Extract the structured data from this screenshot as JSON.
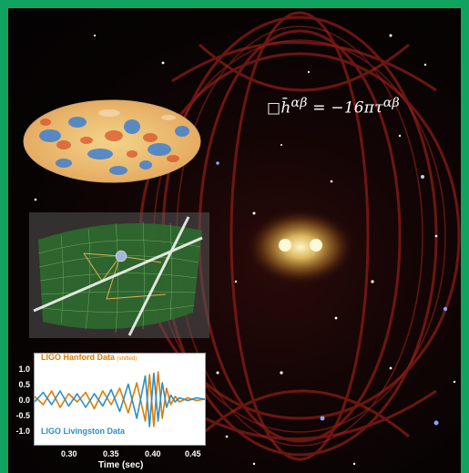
{
  "equation": {
    "box": "□",
    "lhs": "h̄",
    "sup1": "αβ",
    "eq": " = −16πτ",
    "sup2": "αβ"
  },
  "images": {
    "cmb": "cosmic-microwave-background-map",
    "spacetime": "warped-spacetime-grid",
    "background": "red-nebula-with-binary-core"
  },
  "ligo_chart": {
    "legend_top": "LIGO Hanford Data",
    "legend_top_note": "(shifted)",
    "legend_bottom": "LIGO Livingston Data",
    "yticks": [
      "1.0",
      "0.5",
      "0.0",
      "-0.5",
      "-1.0"
    ],
    "xticks": [
      "0.30",
      "0.35",
      "0.40",
      "0.45"
    ],
    "xlabel": "Time (sec)"
  },
  "chart_data": {
    "type": "line",
    "xlabel": "Time (sec)",
    "ylabel": "",
    "xlim": [
      0.26,
      0.46
    ],
    "ylim": [
      -1.2,
      1.2
    ],
    "series": [
      {
        "name": "LIGO Hanford Data",
        "color": "#e07b00",
        "x": [
          0.26,
          0.27,
          0.28,
          0.29,
          0.3,
          0.31,
          0.32,
          0.33,
          0.34,
          0.35,
          0.36,
          0.37,
          0.38,
          0.39,
          0.395,
          0.4,
          0.405,
          0.41,
          0.415,
          0.42,
          0.425,
          0.43,
          0.44,
          0.45,
          0.46
        ],
        "y": [
          0.1,
          -0.2,
          0.3,
          -0.3,
          0.2,
          -0.1,
          0.25,
          -0.35,
          0.3,
          -0.2,
          0.4,
          -0.5,
          0.6,
          -0.8,
          0.9,
          -1.0,
          1.0,
          -0.7,
          0.4,
          -0.2,
          0.1,
          -0.1,
          0.05,
          -0.05,
          0.0
        ]
      },
      {
        "name": "LIGO Livingston Data",
        "color": "#2a8fc9",
        "x": [
          0.26,
          0.27,
          0.28,
          0.29,
          0.3,
          0.31,
          0.32,
          0.33,
          0.34,
          0.35,
          0.36,
          0.37,
          0.38,
          0.39,
          0.395,
          0.4,
          0.405,
          0.41,
          0.415,
          0.42,
          0.425,
          0.43,
          0.44,
          0.45,
          0.46
        ],
        "y": [
          -0.1,
          0.25,
          -0.2,
          0.3,
          -0.25,
          0.2,
          -0.3,
          0.2,
          -0.25,
          0.35,
          -0.45,
          0.55,
          -0.7,
          0.85,
          -1.0,
          0.95,
          -0.8,
          0.6,
          -0.3,
          0.15,
          -0.1,
          0.05,
          -0.05,
          0.05,
          0.0
        ]
      }
    ]
  }
}
